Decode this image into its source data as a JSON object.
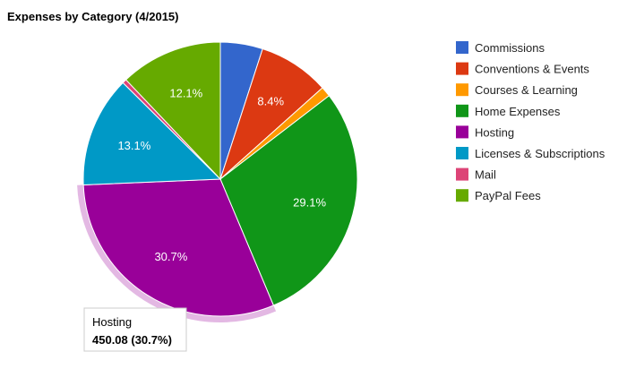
{
  "chart_data": {
    "type": "pie",
    "title": "Expenses by Category (4/2015)",
    "slices": [
      {
        "label": "Commissions",
        "percent": 5.0,
        "color": "#3366cc",
        "label_text": ""
      },
      {
        "label": "Conventions & Events",
        "percent": 8.4,
        "color": "#dc3912",
        "label_text": "8.4%"
      },
      {
        "label": "Courses & Learning",
        "percent": 1.2,
        "color": "#ff9900",
        "label_text": ""
      },
      {
        "label": "Home Expenses",
        "percent": 29.1,
        "color": "#109618",
        "label_text": "29.1%"
      },
      {
        "label": "Hosting",
        "percent": 30.7,
        "color": "#990099",
        "label_text": "30.7%"
      },
      {
        "label": "Licenses & Subscriptions",
        "percent": 13.1,
        "color": "#0099c6",
        "label_text": "13.1%"
      },
      {
        "label": "Mail",
        "percent": 0.5,
        "color": "#dd4477",
        "label_text": ""
      },
      {
        "label": "PayPal Fees",
        "percent": 12.1,
        "color": "#66aa00",
        "label_text": "12.1%"
      }
    ],
    "legend_position": "right",
    "highlighted": "Hosting"
  },
  "tooltip": {
    "name": "Hosting",
    "value": "450.08 (30.7%)"
  }
}
